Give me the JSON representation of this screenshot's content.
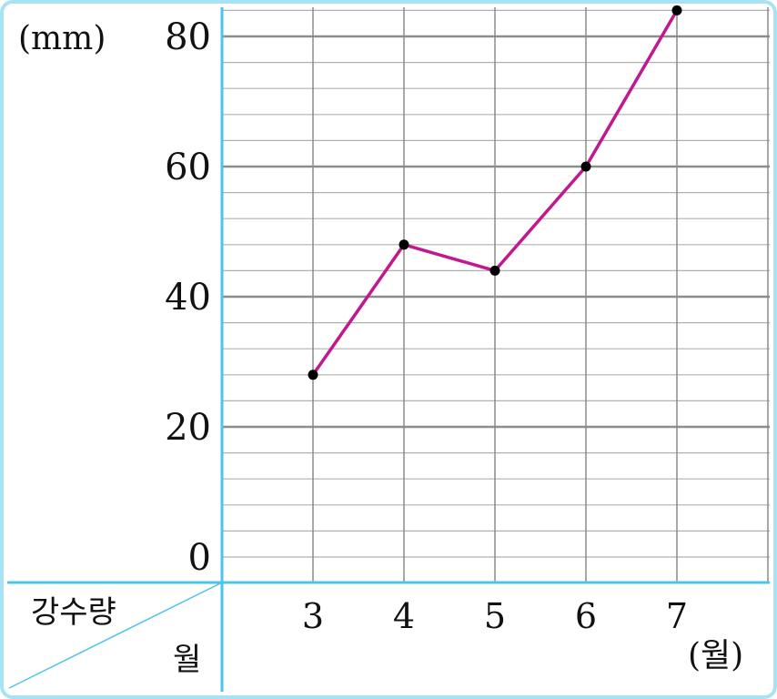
{
  "chart_data": {
    "type": "line",
    "ylabel": "(mm)",
    "xlabel": "(월)",
    "corner_labels": {
      "top": "강수량",
      "bottom": "월"
    },
    "categories": [
      "3",
      "4",
      "5",
      "6",
      "7"
    ],
    "values": [
      28,
      48,
      44,
      60,
      84
    ],
    "y_ticks": [
      "0",
      "20",
      "40",
      "60",
      "80"
    ],
    "ylim": [
      0,
      88
    ],
    "grid": true,
    "legend": "none",
    "colors": {
      "line": "#c2188f",
      "marker": "#000000",
      "axis": "#4dc4ec",
      "grid_major": "#8c8c8c",
      "grid_minor": "#b0b0b0",
      "border": "#a8e2f4"
    }
  }
}
